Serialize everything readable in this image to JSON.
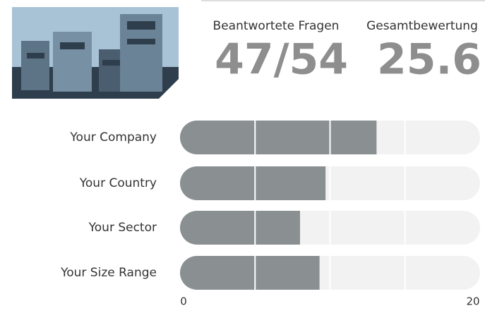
{
  "stats": [
    {
      "label": "Beantwortete Fragen",
      "value": "47/54"
    },
    {
      "label": "Gesamtbewertung",
      "value": "25.6"
    }
  ],
  "chart_data": {
    "type": "hbar",
    "categories": [
      "Your Company",
      "Your Country",
      "Your Sector",
      "Your Size Range"
    ],
    "values": [
      13.1,
      9.7,
      8.0,
      9.3
    ],
    "color": "#8a8f92",
    "track_color": "#f2f2f2",
    "xlim": [
      0,
      20
    ],
    "xticks": [
      0,
      20
    ],
    "xgrid": [
      5,
      10,
      15
    ]
  }
}
